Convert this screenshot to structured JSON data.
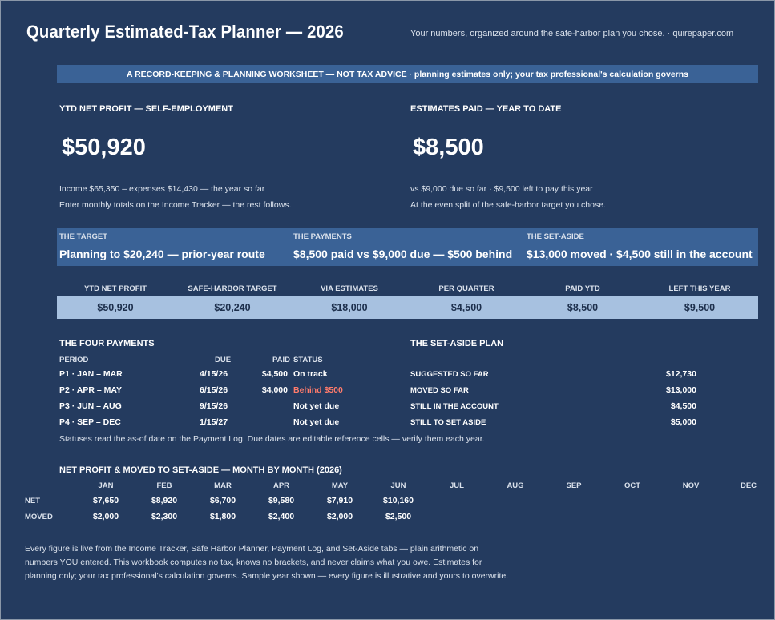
{
  "header": {
    "title": "Quarterly Estimated-Tax Planner — 2026",
    "tagline": "Your numbers, organized around the safe-harbor plan you chose.  ·  quirepaper.com"
  },
  "banner": "A RECORD-KEEPING & PLANNING WORKSHEET — NOT TAX ADVICE  ·  planning estimates only; your tax professional's calculation governs",
  "kpi_profit": {
    "label": "YTD NET PROFIT — SELF-EMPLOYMENT",
    "value": "$50,920",
    "note1": "Income $65,350 – expenses $14,430 — the year so far",
    "note2": "Enter monthly totals on the Income Tracker — the rest follows."
  },
  "kpi_paid": {
    "label": "ESTIMATES PAID — YEAR TO DATE",
    "value": "$8,500",
    "note1": "vs $9,000 due so far · $9,500 left to pay this year",
    "note2": "At the even split of the safe-harbor target you chose."
  },
  "target_band": [
    {
      "label": "THE TARGET",
      "text": "Planning to $20,240 — prior-year route"
    },
    {
      "label": "THE PAYMENTS",
      "text": "$8,500 paid vs $9,000 due — $500 behind"
    },
    {
      "label": "THE SET-ASIDE",
      "text": "$13,000 moved · $4,500 still in the account"
    }
  ],
  "summary": [
    {
      "label": "YTD NET PROFIT",
      "value": "$50,920"
    },
    {
      "label": "SAFE-HARBOR TARGET",
      "value": "$20,240"
    },
    {
      "label": "VIA ESTIMATES",
      "value": "$18,000"
    },
    {
      "label": "PER QUARTER",
      "value": "$4,500"
    },
    {
      "label": "PAID YTD",
      "value": "$8,500"
    },
    {
      "label": "LEFT THIS YEAR",
      "value": "$9,500"
    }
  ],
  "payments": {
    "title": "THE FOUR PAYMENTS",
    "headers": {
      "period": "PERIOD",
      "due": "DUE",
      "paid": "PAID",
      "status": "STATUS"
    },
    "rows": [
      {
        "period": "P1 · JAN – MAR",
        "due": "4/15/26",
        "paid": "$4,500",
        "status": "On track"
      },
      {
        "period": "P2 · APR – MAY",
        "due": "6/15/26",
        "paid": "$4,000",
        "status": "Behind $500"
      },
      {
        "period": "P3 · JUN – AUG",
        "due": "9/15/26",
        "paid": "",
        "status": "Not yet due"
      },
      {
        "period": "P4 · SEP – DEC",
        "due": "1/15/27",
        "paid": "",
        "status": "Not yet due"
      }
    ],
    "note": "Statuses read the as-of date on the Payment Log. Due dates are editable reference cells — verify them each year."
  },
  "setaside": {
    "title": "THE SET-ASIDE PLAN",
    "rows": [
      {
        "label": "SUGGESTED SO FAR",
        "value": "$12,730"
      },
      {
        "label": "MOVED SO FAR",
        "value": "$13,000"
      },
      {
        "label": "STILL IN THE ACCOUNT",
        "value": "$4,500"
      },
      {
        "label": "STILL TO SET ASIDE",
        "value": "$5,000"
      }
    ]
  },
  "monthly": {
    "title": "NET PROFIT & MOVED TO SET-ASIDE — MONTH BY MONTH (2026)",
    "months": [
      "JAN",
      "FEB",
      "MAR",
      "APR",
      "MAY",
      "JUN",
      "JUL",
      "AUG",
      "SEP",
      "OCT",
      "NOV",
      "DEC"
    ],
    "net_label": "NET",
    "moved_label": "MOVED",
    "net": [
      "$7,650",
      "$8,920",
      "$6,700",
      "$9,580",
      "$7,910",
      "$10,160",
      "",
      "",
      "",
      "",
      "",
      ""
    ],
    "moved": [
      "$2,000",
      "$2,300",
      "$1,800",
      "$2,400",
      "$2,000",
      "$2,500",
      "",
      "",
      "",
      "",
      "",
      ""
    ]
  },
  "footer": {
    "line1": "Every figure is live from the Income Tracker, Safe Harbor Planner, Payment Log, and Set-Aside tabs — plain arithmetic on",
    "line2": "numbers YOU entered. This workbook computes no tax, knows no brackets, and never claims what you owe. Estimates for",
    "line3": "planning only; your tax professional's calculation governs. Sample year shown — every figure is illustrative and yours to overwrite."
  }
}
